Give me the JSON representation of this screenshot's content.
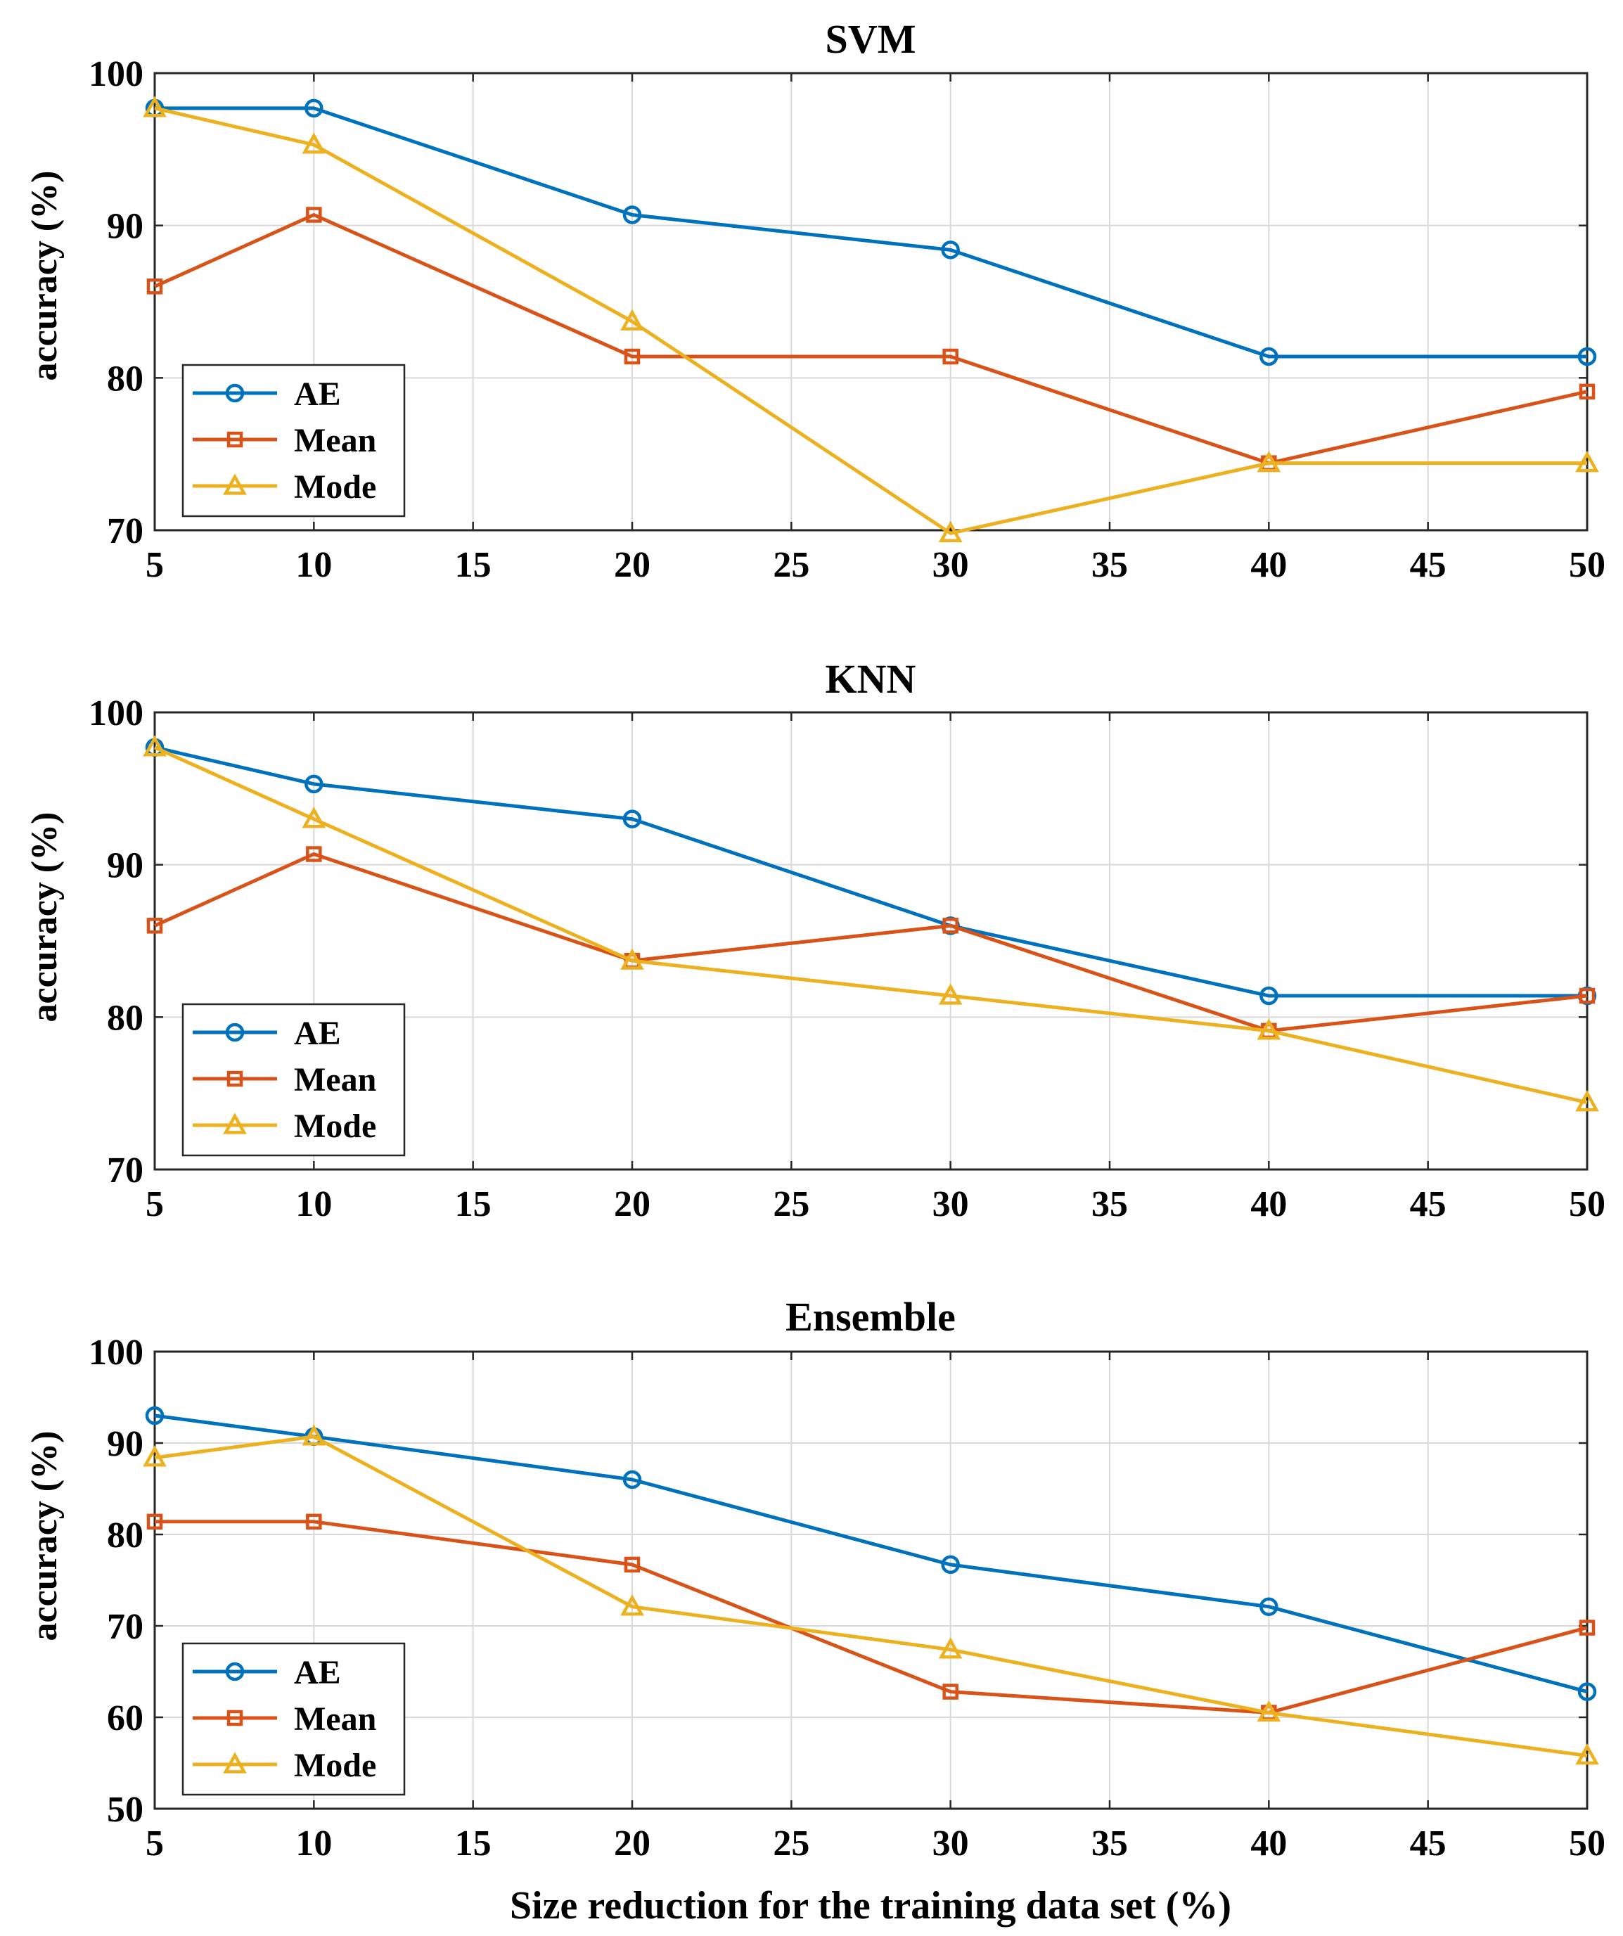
{
  "chart_data": [
    {
      "type": "line",
      "title": "SVM",
      "xlabel": "",
      "ylabel": "accuracy (%)",
      "x": [
        5,
        10,
        20,
        30,
        40,
        50
      ],
      "xlim": [
        5,
        50
      ],
      "ylim": [
        70,
        100
      ],
      "xticks": [
        "5",
        "10",
        "15",
        "20",
        "25",
        "30",
        "35",
        "40",
        "45",
        "50"
      ],
      "yticks": [
        "70",
        "80",
        "90",
        "100"
      ],
      "grid": true,
      "legend_position": "bottom-left",
      "series": [
        {
          "name": "AE",
          "marker": "circle",
          "values": [
            97.7,
            97.7,
            90.7,
            88.4,
            81.4,
            81.4
          ]
        },
        {
          "name": "Mean",
          "marker": "square",
          "values": [
            86.0,
            90.7,
            81.4,
            81.4,
            74.4,
            79.1
          ]
        },
        {
          "name": "Mode",
          "marker": "triangle",
          "values": [
            97.7,
            95.3,
            83.7,
            69.8,
            74.4,
            74.4
          ]
        }
      ]
    },
    {
      "type": "line",
      "title": "KNN",
      "xlabel": "",
      "ylabel": "accuracy (%)",
      "x": [
        5,
        10,
        20,
        30,
        40,
        50
      ],
      "xlim": [
        5,
        50
      ],
      "ylim": [
        70,
        100
      ],
      "xticks": [
        "5",
        "10",
        "15",
        "20",
        "25",
        "30",
        "35",
        "40",
        "45",
        "50"
      ],
      "yticks": [
        "70",
        "80",
        "90",
        "100"
      ],
      "grid": true,
      "legend_position": "bottom-left",
      "series": [
        {
          "name": "AE",
          "marker": "circle",
          "values": [
            97.7,
            95.3,
            93.0,
            86.0,
            81.4,
            81.4
          ]
        },
        {
          "name": "Mean",
          "marker": "square",
          "values": [
            86.0,
            90.7,
            83.7,
            86.0,
            79.1,
            81.4
          ]
        },
        {
          "name": "Mode",
          "marker": "triangle",
          "values": [
            97.7,
            93.0,
            83.7,
            81.4,
            79.1,
            74.4
          ]
        }
      ]
    },
    {
      "type": "line",
      "title": "Ensemble",
      "xlabel": "Size reduction for the training data set (%)",
      "ylabel": "accuracy (%)",
      "x": [
        5,
        10,
        20,
        30,
        40,
        50
      ],
      "xlim": [
        5,
        50
      ],
      "ylim": [
        50,
        100
      ],
      "xticks": [
        "5",
        "10",
        "15",
        "20",
        "25",
        "30",
        "35",
        "40",
        "45",
        "50"
      ],
      "yticks": [
        "50",
        "60",
        "70",
        "80",
        "90",
        "100"
      ],
      "grid": true,
      "legend_position": "bottom-left",
      "series": [
        {
          "name": "AE",
          "marker": "circle",
          "values": [
            93.0,
            90.7,
            86.0,
            76.7,
            72.1,
            62.8
          ]
        },
        {
          "name": "Mean",
          "marker": "square",
          "values": [
            81.4,
            81.4,
            76.7,
            62.8,
            60.5,
            69.8
          ]
        },
        {
          "name": "Mode",
          "marker": "triangle",
          "values": [
            88.4,
            90.7,
            72.1,
            67.4,
            60.5,
            55.8
          ]
        }
      ]
    }
  ],
  "colors": {
    "AE": "#0072BD",
    "Mean": "#D95319",
    "Mode": "#EDB120",
    "grid": "#d9d9d9",
    "axis": "#262626"
  }
}
